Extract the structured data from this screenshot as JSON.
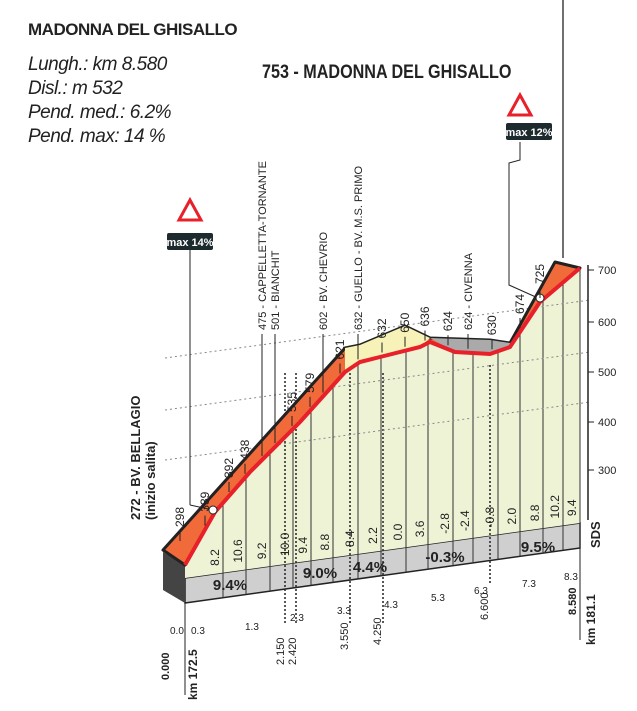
{
  "header": {
    "climb_name": "MADONNA DEL GHISALLO",
    "length": "Lungh.: km 8.580",
    "climb": "Disl.: m 532",
    "avg_grade": "Pend. med.: 6.2%",
    "max_grade": "Pend. max: 14 %",
    "summit_label": "753 - MADONNA DEL GHISALLO"
  },
  "markers": [
    {
      "label": "max 14%"
    },
    {
      "label": "max 12%"
    }
  ],
  "start_label": "272 - BV. BELLAGIO",
  "start_sub": "(inizio salita)",
  "altitudes": [
    "298",
    "339",
    "392",
    "438",
    "475 - CAPPELLETTA-TORNANTE",
    "501 - BIANCHIT",
    "535",
    "579",
    "602 - BV. CHEVRIO",
    "621",
    "632 - GUELLO - BV. M.S. PRIMO",
    "632",
    "650",
    "636",
    "624",
    "624 - CIVENNA",
    "630",
    "674",
    "725"
  ],
  "y_axis": [
    "700",
    "600",
    "500",
    "400",
    "300"
  ],
  "sds": "SDS",
  "grades": [
    "8.2",
    "10.6",
    "9.2",
    "10.0",
    "9.4",
    "8.8",
    "8.4",
    "2.2",
    "0.0",
    "3.6",
    "-2.8",
    "-2.4",
    "-0.8",
    "2.0",
    "8.8",
    "10.2",
    "9.4"
  ],
  "sections": [
    "9.4%",
    "9.0%",
    "4.4%",
    "-0.3%",
    "9.5%"
  ],
  "km_ticks": [
    "0.0",
    "0.3",
    "1.3",
    "2.3",
    "3.3",
    "4.3",
    "5.3",
    "6.3",
    "7.3",
    "8.3"
  ],
  "km_points": [
    "0.000",
    "2.150",
    "2.420",
    "3.550",
    "4.250",
    "6.600",
    "8.580"
  ],
  "km_start": "km 172.5",
  "km_end": "km 181.1",
  "colors": {
    "red": "#e8402a",
    "orange": "#f06a3a",
    "green": "#eef3d6",
    "yellow": "#f7f2b8",
    "grey": "#cfcfcf"
  }
}
